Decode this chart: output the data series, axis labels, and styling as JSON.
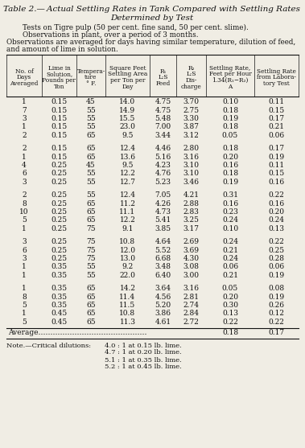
{
  "title_line1": "Table 2.—",
  "title_line1_italic": "Actual Settling Rates in Tank Compared with Settling Rates",
  "title_line2": "Determined by Test",
  "notes": [
    "Tests on Tigre pulp (50 per cent. fine sand, 50 per cent. slime).",
    "Observations in plant, over a period of 3 months.",
    "Observations are averaged for days having similar temperature, dilution of feed,",
    "and amount of lime in solution."
  ],
  "col_headers": [
    "No. of\nDays\nAveraged",
    "Lime in\nSolution,\nPounds per\nTon",
    "Tempera-\nture\n° F.",
    "Square Feet\nSettling Area\nper Ton per\nDay",
    "R₁\nL:S\nFeed",
    "R₂\nL:S\nDis-\ncharge",
    "Settling Rate,\nFeet per Hour\n1.34(R₁−R₂)\nA",
    "Settling Rate\nfrom Labora-\ntory Test"
  ],
  "rows": [
    [
      1,
      0.15,
      45,
      14.0,
      4.75,
      3.7,
      0.1,
      0.11
    ],
    [
      7,
      0.15,
      55,
      14.9,
      4.75,
      2.75,
      0.18,
      0.15
    ],
    [
      3,
      0.15,
      55,
      15.5,
      5.48,
      3.3,
      0.19,
      0.17
    ],
    [
      1,
      0.15,
      55,
      23.0,
      7.0,
      3.87,
      0.18,
      0.21
    ],
    [
      2,
      0.15,
      65,
      9.5,
      3.44,
      3.12,
      0.05,
      0.06
    ],
    null,
    [
      2,
      0.15,
      65,
      12.4,
      4.46,
      2.8,
      0.18,
      0.17
    ],
    [
      1,
      0.15,
      65,
      13.6,
      5.16,
      3.16,
      0.2,
      0.19
    ],
    [
      4,
      0.25,
      45,
      9.5,
      4.23,
      3.1,
      0.16,
      0.11
    ],
    [
      6,
      0.25,
      55,
      12.2,
      4.76,
      3.1,
      0.18,
      0.15
    ],
    [
      3,
      0.25,
      55,
      12.7,
      5.23,
      3.46,
      0.19,
      0.16
    ],
    null,
    [
      2,
      0.25,
      55,
      12.4,
      7.05,
      4.21,
      0.31,
      0.22
    ],
    [
      8,
      0.25,
      65,
      11.2,
      4.26,
      2.88,
      0.16,
      0.16
    ],
    [
      10,
      0.25,
      65,
      11.1,
      4.73,
      2.83,
      0.23,
      0.2
    ],
    [
      5,
      0.25,
      65,
      12.2,
      5.41,
      3.25,
      0.24,
      0.24
    ],
    [
      1,
      0.25,
      75,
      9.1,
      3.85,
      3.17,
      0.1,
      0.13
    ],
    null,
    [
      3,
      0.25,
      75,
      10.8,
      4.64,
      2.69,
      0.24,
      0.22
    ],
    [
      6,
      0.25,
      75,
      12.0,
      5.52,
      3.69,
      0.21,
      0.25
    ],
    [
      3,
      0.25,
      75,
      13.0,
      6.68,
      4.3,
      0.24,
      0.28
    ],
    [
      1,
      0.35,
      55,
      9.2,
      3.48,
      3.08,
      0.06,
      0.06
    ],
    [
      1,
      0.35,
      55,
      22.0,
      6.4,
      3.0,
      0.21,
      0.19
    ],
    null,
    [
      1,
      0.35,
      65,
      14.2,
      3.64,
      3.16,
      0.05,
      0.08
    ],
    [
      8,
      0.35,
      65,
      11.4,
      4.56,
      2.81,
      0.2,
      0.19
    ],
    [
      5,
      0.35,
      65,
      11.5,
      5.2,
      2.74,
      0.3,
      0.26
    ],
    [
      1,
      0.45,
      65,
      10.8,
      3.86,
      2.84,
      0.13,
      0.12
    ],
    [
      5,
      0.45,
      65,
      11.3,
      4.61,
      2.72,
      0.22,
      0.22
    ]
  ],
  "avg_col6": "0.18",
  "avg_col7": "0.17",
  "note_lines": [
    [
      "Note.—Critical dilutions:",
      "4.0 : 1 at 0.15 lb. lime."
    ],
    [
      "",
      "4.7 : 1 at 0.20 lb. lime."
    ],
    [
      "",
      "5.1 : 1 at 0.35 lb. lime."
    ],
    [
      "",
      "5.2 : 1 at 0.45 lb. lime."
    ]
  ],
  "bg_color": "#f0ede4",
  "text_color": "#111111"
}
